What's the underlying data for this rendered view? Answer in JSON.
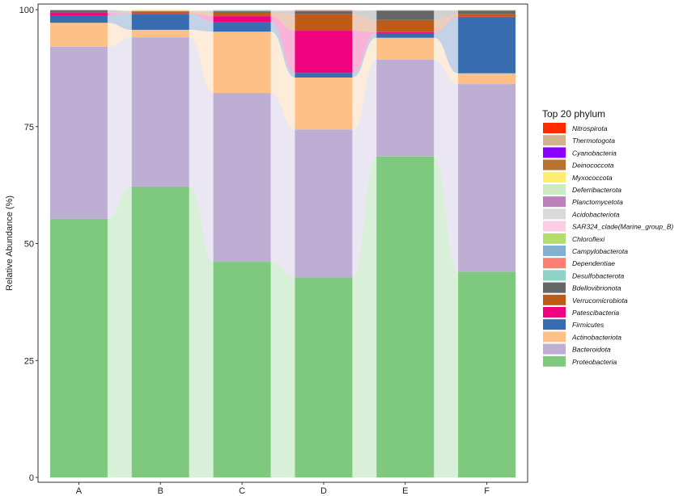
{
  "chart_data": {
    "type": "bar",
    "subtype": "stacked-alluvial",
    "ylabel": "Relative Abundance (%)",
    "xlabel": "",
    "ylim": [
      0,
      100
    ],
    "yticks": [
      0,
      25,
      50,
      75,
      100
    ],
    "categories": [
      "A",
      "B",
      "C",
      "D",
      "E",
      "F"
    ],
    "legend_title": "Top 20 phylum",
    "legend_position": "right",
    "series": [
      {
        "name": "Proteobacteria",
        "color": "#7FC97F",
        "values": [
          55.3,
          62.2,
          46.1,
          42.8,
          68.6,
          44.0
        ]
      },
      {
        "name": "Bacteroidota",
        "color": "#BEAED4",
        "values": [
          36.8,
          31.9,
          36.1,
          31.6,
          20.7,
          40.1
        ]
      },
      {
        "name": "Actinobacteriota",
        "color": "#FDC086",
        "values": [
          5.1,
          1.6,
          13.1,
          11.1,
          4.7,
          2.3
        ]
      },
      {
        "name": "Firmicutes",
        "color": "#386CB0",
        "values": [
          1.6,
          3.4,
          2.1,
          1.0,
          1.0,
          11.9
        ]
      },
      {
        "name": "Patescibacteria",
        "color": "#F0027F",
        "values": [
          0.5,
          0.1,
          1.2,
          9.0,
          0.2,
          0.2
        ]
      },
      {
        "name": "Verrucomicrobiota",
        "color": "#BF5B17",
        "values": [
          0.1,
          0.4,
          0.9,
          3.5,
          2.6,
          0.5
        ]
      },
      {
        "name": "Bdellovibrionota",
        "color": "#666666",
        "values": [
          0.5,
          0.1,
          0.2,
          0.7,
          2.0,
          0.8
        ]
      },
      {
        "name": "Desulfobacterota",
        "color": "#8DD3C7",
        "values": [
          0.0,
          0.0,
          0.2,
          0.0,
          0.0,
          0.0
        ]
      },
      {
        "name": "Dependentiae",
        "color": "#FB8072",
        "values": [
          0.0,
          0.0,
          0.0,
          0.2,
          0.0,
          0.0
        ]
      },
      {
        "name": "Campylobacterota",
        "color": "#80B1D3",
        "values": [
          0.0,
          0.0,
          0.0,
          0.0,
          0.0,
          0.0
        ]
      },
      {
        "name": "Chloroflexi",
        "color": "#B3DE69",
        "values": [
          0.0,
          0.1,
          0.0,
          0.0,
          0.0,
          0.1
        ]
      },
      {
        "name": "SAR324_clade(Marine_group_B)",
        "color": "#FCCDE5",
        "values": [
          0.0,
          0.0,
          0.0,
          0.0,
          0.0,
          0.0
        ]
      },
      {
        "name": "Acidobacteriota",
        "color": "#D9D9D9",
        "values": [
          0.1,
          0.1,
          0.1,
          0.1,
          0.2,
          0.1
        ]
      },
      {
        "name": "Planctomycetota",
        "color": "#BC80BD",
        "values": [
          0.0,
          0.0,
          0.0,
          0.0,
          0.0,
          0.0
        ]
      },
      {
        "name": "Deferribacterota",
        "color": "#CCEBC5",
        "values": [
          0.0,
          0.0,
          0.0,
          0.0,
          0.0,
          0.0
        ]
      },
      {
        "name": "Myxococcota",
        "color": "#FFED6F",
        "values": [
          0.0,
          0.1,
          0.0,
          0.0,
          0.0,
          0.0
        ]
      },
      {
        "name": "Deinococcota",
        "color": "#B87333",
        "values": [
          0.0,
          0.0,
          0.0,
          0.0,
          0.0,
          0.0
        ]
      },
      {
        "name": "Cyanobacteria",
        "color": "#8B00FF",
        "values": [
          0.0,
          0.0,
          0.0,
          0.0,
          0.0,
          0.0
        ]
      },
      {
        "name": "Thermotogota",
        "color": "#D2B48C",
        "values": [
          0.0,
          0.0,
          0.0,
          0.0,
          0.0,
          0.0
        ]
      },
      {
        "name": "Nitrospirota",
        "color": "#FF2A00",
        "values": [
          0.0,
          0.0,
          0.0,
          0.0,
          0.0,
          0.0
        ]
      }
    ]
  }
}
